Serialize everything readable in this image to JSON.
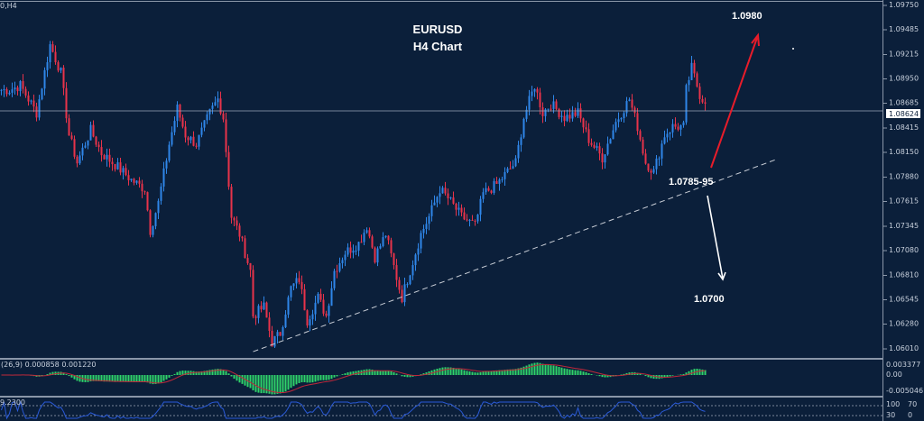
{
  "window": {
    "symbol_label": "0,H4"
  },
  "colors": {
    "background": "#0b1f3a",
    "bull": "#2f86e8",
    "bear": "#e8334a",
    "macd_hist": "#2fd36a",
    "macd_signal": "#c0283a",
    "osc_line": "#2a5ad8",
    "up_arrow": "#e81c2a",
    "down_arrow": "#ffffff"
  },
  "chart_data": {
    "type": "candlestick",
    "title": "EURUSD",
    "subtitle": "H4 Chart",
    "current_price": "1.08624",
    "y_ticks": [
      "1.09750",
      "1.09485",
      "1.09215",
      "1.08950",
      "1.08685",
      "1.08415",
      "1.08150",
      "1.07880",
      "1.07615",
      "1.07345",
      "1.07080",
      "1.06810",
      "1.06545",
      "1.06280",
      "1.06010"
    ],
    "ylim": [
      1.0601,
      1.0975
    ],
    "price_path": [
      [
        0,
        1.0883
      ],
      [
        3,
        1.0883
      ],
      [
        7,
        1.0888
      ],
      [
        13,
        1.0858
      ],
      [
        18,
        1.0932
      ],
      [
        22,
        1.0902
      ],
      [
        25,
        1.0834
      ],
      [
        28,
        1.0804
      ],
      [
        33,
        1.0839
      ],
      [
        37,
        1.0814
      ],
      [
        43,
        1.0799
      ],
      [
        48,
        1.0785
      ],
      [
        53,
        1.0775
      ],
      [
        55,
        1.073
      ],
      [
        58,
        1.076
      ],
      [
        62,
        1.0824
      ],
      [
        65,
        1.0863
      ],
      [
        68,
        1.0834
      ],
      [
        72,
        1.0824
      ],
      [
        77,
        1.0858
      ],
      [
        80,
        1.0873
      ],
      [
        82,
        1.0853
      ],
      [
        85,
        1.0745
      ],
      [
        88,
        1.0726
      ],
      [
        92,
        1.0686
      ],
      [
        93,
        1.0637
      ],
      [
        97,
        1.0647
      ],
      [
        100,
        1.0608
      ],
      [
        103,
        1.0618
      ],
      [
        107,
        1.0667
      ],
      [
        110,
        1.0677
      ],
      [
        113,
        1.0632
      ],
      [
        117,
        1.0657
      ],
      [
        120,
        1.0637
      ],
      [
        123,
        1.0686
      ],
      [
        127,
        1.0706
      ],
      [
        132,
        1.0716
      ],
      [
        135,
        1.0735
      ],
      [
        138,
        1.0701
      ],
      [
        142,
        1.0726
      ],
      [
        147,
        1.0667
      ],
      [
        148,
        1.0657
      ],
      [
        152,
        1.0696
      ],
      [
        155,
        1.0726
      ],
      [
        158,
        1.0745
      ],
      [
        162,
        1.0775
      ],
      [
        165,
        1.0765
      ],
      [
        170,
        1.0745
      ],
      [
        175,
        1.0735
      ],
      [
        178,
        1.077
      ],
      [
        183,
        1.078
      ],
      [
        187,
        1.0794
      ],
      [
        190,
        1.0804
      ],
      [
        193,
        1.0853
      ],
      [
        197,
        1.0888
      ],
      [
        200,
        1.0858
      ],
      [
        203,
        1.0868
      ],
      [
        208,
        1.0853
      ],
      [
        213,
        1.0858
      ],
      [
        217,
        1.0829
      ],
      [
        222,
        1.0809
      ],
      [
        227,
        1.0848
      ],
      [
        232,
        1.0873
      ],
      [
        235,
        1.0843
      ],
      [
        238,
        1.0804
      ],
      [
        241,
        1.0794
      ],
      [
        245,
        1.0834
      ],
      [
        248,
        1.0843
      ],
      [
        252,
        1.0843
      ],
      [
        253,
        1.0883
      ],
      [
        255,
        1.0907
      ],
      [
        258,
        1.0878
      ],
      [
        260,
        1.0868
      ]
    ],
    "annotations": [
      {
        "text": "1.0980",
        "kind": "target-up"
      },
      {
        "text": "1.0785-95",
        "kind": "pivot"
      },
      {
        "text": "1.0700",
        "kind": "target-down"
      }
    ],
    "trendline": {
      "style": "dashed",
      "from": [
        93,
        1.0598
      ],
      "to": [
        286,
        1.0807
      ]
    },
    "macd_panel": {
      "label": "(26,9) 0.000858 0.001220",
      "ticks": [
        "0.003377",
        "0.00",
        "-0.005046"
      ]
    },
    "osc_panel": {
      "label": "9.2300",
      "ticks": [
        "100",
        "70",
        "30",
        "0"
      ]
    }
  }
}
